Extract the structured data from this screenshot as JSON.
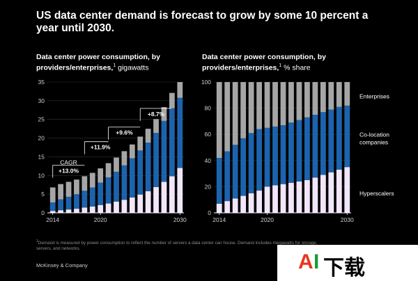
{
  "headline": "US data center demand is forecast to grow by some 10 percent a year until 2030.",
  "left_title": {
    "main": "Data center power consumption, by providers/enterprises,",
    "sup": "1",
    "unit": " gigawatts"
  },
  "right_title": {
    "main": "Data center power consumption, by providers/enterprises,",
    "sup": "1",
    "unit": " % share"
  },
  "footnote": {
    "sup": "1",
    "text": "Demand is measured by power consumption to reflect the number of servers a data center can house. Demand includes megawatts for storage, servers, and networks."
  },
  "brand": "McKinsey & Company",
  "watermark": {
    "a": "A",
    "i": "I",
    "rest": "下载"
  },
  "colors": {
    "hyperscalers": "#f2e6fb",
    "colocation": "#1c63ad",
    "enterprises": "#a6a6a6",
    "axis": "#d0d0d0",
    "grid": "#333333"
  },
  "chart_data": [
    {
      "type": "bar",
      "stacked": true,
      "categories": [
        "2014",
        "2015",
        "2016",
        "2017",
        "2018",
        "2019",
        "2020",
        "2021",
        "2022",
        "2023",
        "2024",
        "2025",
        "2026",
        "2027",
        "2028",
        "2029",
        "2030"
      ],
      "tick_labels": [
        "2014",
        "2020",
        "2030"
      ],
      "ylim": [
        0,
        35
      ],
      "yticks": [
        0,
        5,
        10,
        15,
        20,
        25,
        30,
        35
      ],
      "series": [
        {
          "values": [
            0.5,
            0.7,
            0.9,
            1.1,
            1.4,
            1.7,
            2.1,
            2.5,
            3.0,
            3.5,
            4.1,
            4.9,
            5.8,
            6.9,
            8.3,
            9.8,
            12.0
          ]
        },
        {
          "values": [
            2.3,
            2.9,
            3.4,
            3.9,
            4.5,
            5.1,
            6.0,
            7.0,
            8.0,
            9.2,
            10.5,
            11.8,
            13.0,
            14.5,
            16.3,
            18.2,
            18.8
          ]
        },
        {
          "values": [
            4.0,
            4.1,
            4.0,
            3.9,
            3.9,
            3.9,
            3.8,
            3.8,
            3.8,
            3.8,
            3.7,
            3.7,
            3.7,
            3.7,
            3.7,
            4.1,
            4.2
          ]
        }
      ],
      "annotations": [
        {
          "text": "CAGR",
          "x": "2016",
          "y": 12.9
        },
        {
          "text": "+13.0%",
          "x": "2016",
          "y": 10.7
        },
        {
          "text": "+11.9%",
          "x": "2020",
          "y": 17.0
        },
        {
          "text": "+9.6%",
          "x": "2023",
          "y": 20.9
        },
        {
          "text": "+8.7%",
          "x": "2027",
          "y": 25.9
        }
      ]
    },
    {
      "type": "bar",
      "stacked": true,
      "categories": [
        "2014",
        "2015",
        "2016",
        "2017",
        "2018",
        "2019",
        "2020",
        "2021",
        "2022",
        "2023",
        "2024",
        "2025",
        "2026",
        "2027",
        "2028",
        "2029",
        "2030"
      ],
      "tick_labels": [
        "2014",
        "2020",
        "2030"
      ],
      "ylim": [
        0,
        100
      ],
      "yticks": [
        0,
        20,
        40,
        60,
        80,
        100
      ],
      "series": [
        {
          "name": "Hyperscalers",
          "values": [
            7,
            9,
            11,
            13,
            15,
            17,
            20,
            21,
            22,
            23,
            24,
            25,
            27,
            29,
            31,
            33,
            35
          ]
        },
        {
          "name": "Co-location companies",
          "values": [
            35,
            38,
            41,
            44,
            46,
            47,
            45,
            45,
            45,
            46,
            47,
            48,
            48,
            48,
            48,
            48,
            47
          ]
        },
        {
          "name": "Enterprises",
          "values": [
            58,
            53,
            48,
            43,
            39,
            36,
            35,
            34,
            33,
            31,
            29,
            27,
            25,
            23,
            21,
            19,
            18
          ]
        }
      ],
      "legend": [
        {
          "lines": [
            "Enterprises"
          ],
          "value": 89
        },
        {
          "lines": [
            "Co-location",
            "companies"
          ],
          "value": 57
        },
        {
          "lines": [
            "Hyperscalers"
          ],
          "value": 15
        }
      ]
    }
  ]
}
